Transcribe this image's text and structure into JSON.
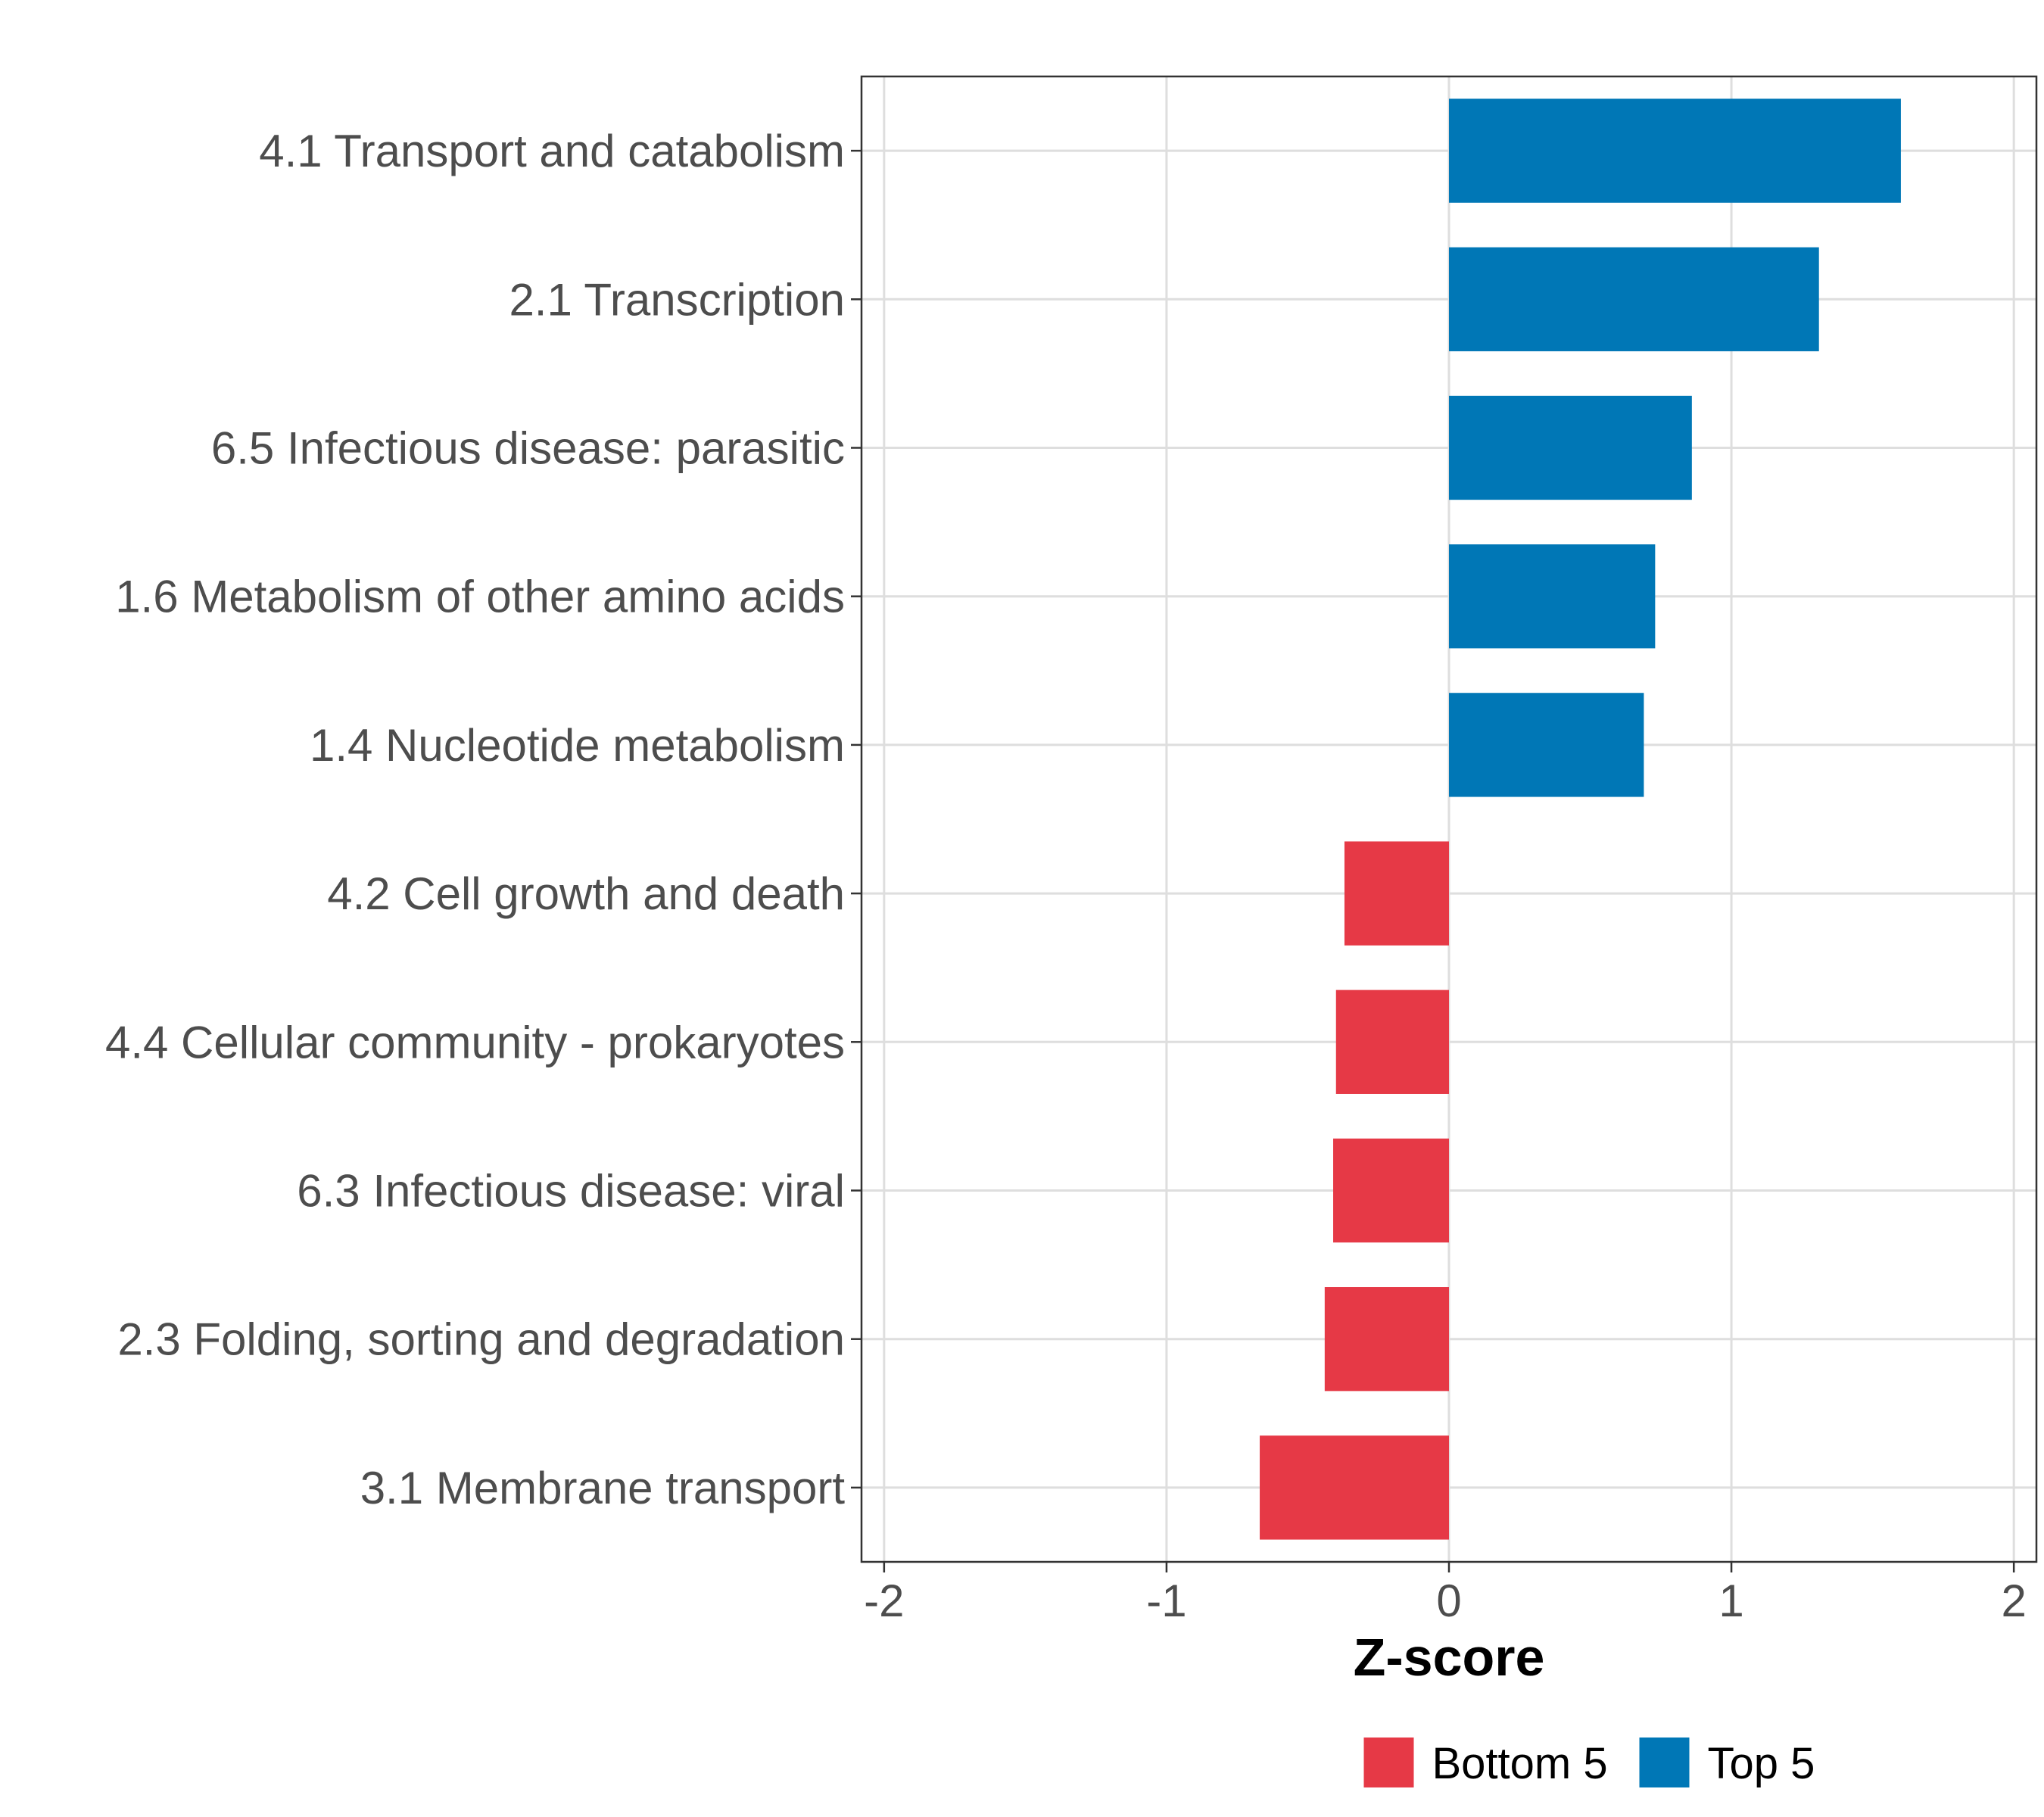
{
  "chart_data": {
    "type": "bar",
    "orientation": "horizontal",
    "categories": [
      "4.1 Transport and catabolism",
      "2.1 Transcription",
      "6.5 Infectious disease: parasitic",
      "1.6 Metabolism of other amino acids",
      "1.4 Nucleotide metabolism",
      "4.2 Cell growth and death",
      "4.4 Cellular community - prokaryotes",
      "6.3 Infectious disease: viral",
      "2.3 Folding, sorting and degradation",
      "3.1 Membrane transport"
    ],
    "values": [
      1.6,
      1.31,
      0.86,
      0.73,
      0.69,
      -0.37,
      -0.4,
      -0.41,
      -0.44,
      -0.67
    ],
    "groups": [
      "Top 5",
      "Top 5",
      "Top 5",
      "Top 5",
      "Top 5",
      "Bottom 5",
      "Bottom 5",
      "Bottom 5",
      "Bottom 5",
      "Bottom 5"
    ],
    "xlabel": "Z-score",
    "ylabel": "",
    "xlim": [
      -2.08,
      2.08
    ],
    "xticks": [
      -2,
      -1,
      0,
      1,
      2
    ],
    "xtick_labels": [
      "-2",
      "-1",
      "0",
      "1",
      "2"
    ],
    "grid": true,
    "legend": {
      "position": "bottom",
      "entries": [
        {
          "label": "Bottom 5",
          "color": "#e63946"
        },
        {
          "label": "Top 5",
          "color": "#0077b6"
        }
      ]
    },
    "colors": {
      "Top 5": "#0077b6",
      "Bottom 5": "#e63946"
    }
  }
}
